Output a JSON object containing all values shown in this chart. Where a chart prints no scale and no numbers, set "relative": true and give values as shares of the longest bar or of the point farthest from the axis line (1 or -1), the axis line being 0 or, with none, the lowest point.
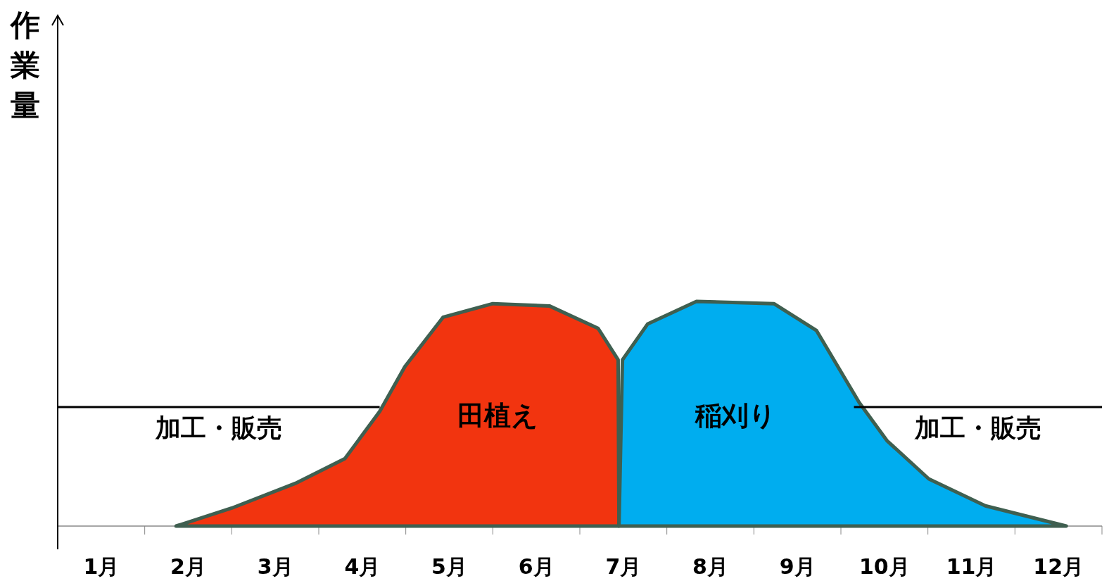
{
  "chart_data": {
    "type": "area",
    "relative": true,
    "annotations": [
      "作業量"
    ],
    "xlim": [
      0.5,
      12.5
    ],
    "xticks": [
      {
        "value": 1,
        "label": "1月"
      },
      {
        "value": 2,
        "label": "2月"
      },
      {
        "value": 3,
        "label": "3月"
      },
      {
        "value": 4,
        "label": "4月"
      },
      {
        "value": 5,
        "label": "5月"
      },
      {
        "value": 6,
        "label": "6月"
      },
      {
        "value": 7,
        "label": "7月"
      },
      {
        "value": 8,
        "label": "8月"
      },
      {
        "value": 9,
        "label": "9月"
      },
      {
        "value": 10,
        "label": "10月"
      },
      {
        "value": 11,
        "label": "11月"
      },
      {
        "value": 12,
        "label": "12月"
      }
    ],
    "series": [
      {
        "name": "田植え",
        "color": "#f2340f",
        "x": [
          1.86,
          2.5,
          3.23,
          3.8,
          4.2,
          4.49,
          4.93,
          5.5,
          6.15,
          6.71,
          6.94,
          6.95
        ],
        "values": [
          0,
          0.08,
          0.19,
          0.3,
          0.51,
          0.71,
          0.93,
          0.99,
          0.98,
          0.88,
          0.74,
          0
        ]
      },
      {
        "name": "稲刈り",
        "color": "#00adef",
        "x": [
          6.95,
          6.99,
          7.28,
          7.84,
          8.73,
          9.22,
          9.71,
          10.03,
          10.51,
          11.16,
          12.09
        ],
        "values": [
          0,
          0.74,
          0.9,
          1,
          0.99,
          0.87,
          0.55,
          0.38,
          0.21,
          0.09,
          0
        ]
      },
      {
        "name": "加工・販売",
        "type": "line",
        "color": "#000000",
        "x": [
          0.5,
          4.2
        ],
        "values": [
          0.53,
          0.53
        ]
      },
      {
        "name": "加工・販売",
        "type": "line",
        "color": "#000000",
        "x": [
          9.65,
          12.5
        ],
        "values": [
          0.53,
          0.53
        ]
      }
    ]
  }
}
